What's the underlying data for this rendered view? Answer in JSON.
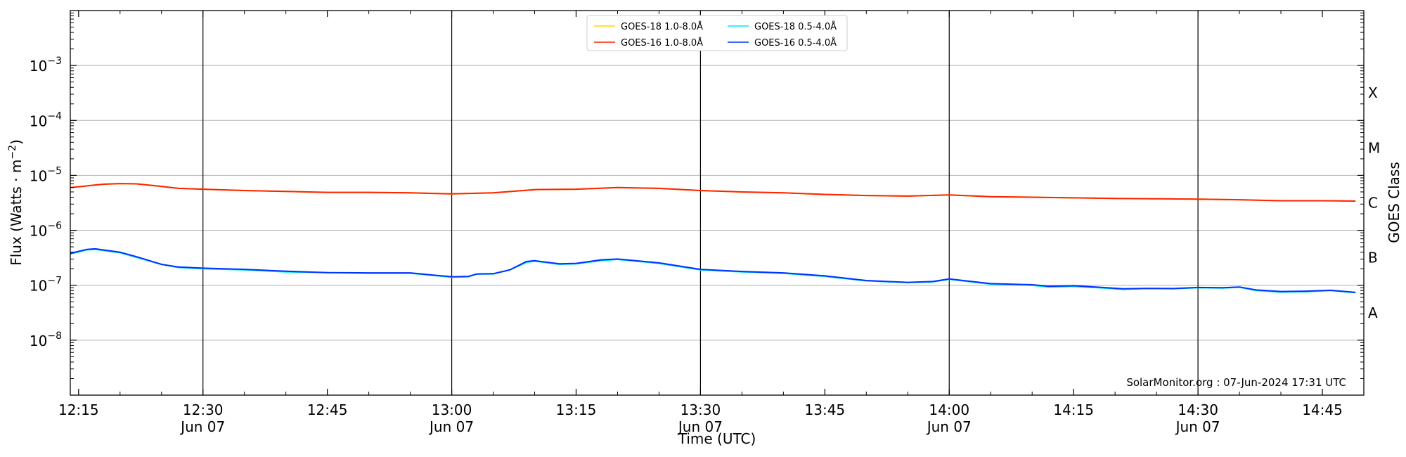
{
  "chart_data": {
    "type": "line",
    "title": "",
    "xlabel": "Time (UTC)",
    "ylabel": "Flux (Watts · m^-2)",
    "ylabel_right": "GOES Class",
    "y_scale": "log",
    "ylim": [
      1e-09,
      0.01
    ],
    "xlim": [
      "2024-06-07 12:14",
      "2024-06-07 14:50"
    ],
    "grid": "horizontal at decades",
    "y_ticks": [
      {
        "value": 1e-08,
        "base": "10",
        "exp": "−8"
      },
      {
        "value": 1e-07,
        "base": "10",
        "exp": "−7"
      },
      {
        "value": 1e-06,
        "base": "10",
        "exp": "−6"
      },
      {
        "value": 1e-05,
        "base": "10",
        "exp": "−5"
      },
      {
        "value": 0.0001,
        "base": "10",
        "exp": "−4"
      },
      {
        "value": 0.001,
        "base": "10",
        "exp": "−3"
      }
    ],
    "x_ticks": [
      {
        "time": "12:15",
        "label": "12:15",
        "date": "",
        "vline": false
      },
      {
        "time": "12:30",
        "label": "12:30",
        "date": "Jun 07",
        "vline": true
      },
      {
        "time": "12:45",
        "label": "12:45",
        "date": "",
        "vline": false
      },
      {
        "time": "13:00",
        "label": "13:00",
        "date": "Jun 07",
        "vline": true
      },
      {
        "time": "13:15",
        "label": "13:15",
        "date": "",
        "vline": false
      },
      {
        "time": "13:30",
        "label": "13:30",
        "date": "Jun 07",
        "vline": true
      },
      {
        "time": "13:45",
        "label": "13:45",
        "date": "",
        "vline": false
      },
      {
        "time": "14:00",
        "label": "14:00",
        "date": "Jun 07",
        "vline": true
      },
      {
        "time": "14:15",
        "label": "14:15",
        "date": "",
        "vline": false
      },
      {
        "time": "14:30",
        "label": "14:30",
        "date": "Jun 07",
        "vline": true
      },
      {
        "time": "14:45",
        "label": "14:45",
        "date": "",
        "vline": false
      }
    ],
    "class_labels": [
      {
        "label": "A",
        "value": 1e-08
      },
      {
        "label": "B",
        "value": 1e-07
      },
      {
        "label": "C",
        "value": 1e-06
      },
      {
        "label": "M",
        "value": 1e-05
      },
      {
        "label": "X",
        "value": 0.0001
      }
    ],
    "legend_position": "top-center",
    "credit": "SolarMonitor.org : 07-Jun-2024 17:31 UTC",
    "series": [
      {
        "name": "GOES-18 1.0-8.0Å",
        "color": "#ffd700",
        "points": [
          [
            "12:14",
            6e-06
          ],
          [
            "12:18",
            6.9e-06
          ],
          [
            "12:20",
            7.1e-06
          ],
          [
            "12:22",
            7e-06
          ],
          [
            "12:25",
            6.3e-06
          ],
          [
            "12:27",
            5.8e-06
          ],
          [
            "12:30",
            5.6e-06
          ],
          [
            "12:35",
            5.3e-06
          ],
          [
            "12:40",
            5.1e-06
          ],
          [
            "12:45",
            4.9e-06
          ],
          [
            "12:50",
            4.9e-06
          ],
          [
            "12:55",
            4.8e-06
          ],
          [
            "13:00",
            4.6e-06
          ],
          [
            "13:05",
            4.8e-06
          ],
          [
            "13:10",
            5.5e-06
          ],
          [
            "13:15",
            5.6e-06
          ],
          [
            "13:20",
            6e-06
          ],
          [
            "13:25",
            5.8e-06
          ],
          [
            "13:30",
            5.3e-06
          ],
          [
            "13:35",
            5e-06
          ],
          [
            "13:40",
            4.8e-06
          ],
          [
            "13:45",
            4.5e-06
          ],
          [
            "13:50",
            4.3e-06
          ],
          [
            "13:55",
            4.2e-06
          ],
          [
            "14:00",
            4.4e-06
          ],
          [
            "14:05",
            4.1e-06
          ],
          [
            "14:10",
            4e-06
          ],
          [
            "14:15",
            3.9e-06
          ],
          [
            "14:20",
            3.8e-06
          ],
          [
            "14:25",
            3.75e-06
          ],
          [
            "14:30",
            3.7e-06
          ],
          [
            "14:35",
            3.6e-06
          ],
          [
            "14:40",
            3.45e-06
          ],
          [
            "14:45",
            3.45e-06
          ],
          [
            "14:49",
            3.4e-06
          ]
        ]
      },
      {
        "name": "GOES-16 1.0-8.0Å",
        "color": "#ff2200",
        "points": [
          [
            "12:14",
            6e-06
          ],
          [
            "12:18",
            6.9e-06
          ],
          [
            "12:20",
            7.1e-06
          ],
          [
            "12:22",
            7e-06
          ],
          [
            "12:25",
            6.3e-06
          ],
          [
            "12:27",
            5.8e-06
          ],
          [
            "12:30",
            5.6e-06
          ],
          [
            "12:35",
            5.3e-06
          ],
          [
            "12:40",
            5.1e-06
          ],
          [
            "12:45",
            4.9e-06
          ],
          [
            "12:50",
            4.9e-06
          ],
          [
            "12:55",
            4.8e-06
          ],
          [
            "13:00",
            4.6e-06
          ],
          [
            "13:05",
            4.8e-06
          ],
          [
            "13:10",
            5.5e-06
          ],
          [
            "13:15",
            5.6e-06
          ],
          [
            "13:20",
            6e-06
          ],
          [
            "13:25",
            5.8e-06
          ],
          [
            "13:30",
            5.3e-06
          ],
          [
            "13:35",
            5e-06
          ],
          [
            "13:40",
            4.8e-06
          ],
          [
            "13:45",
            4.5e-06
          ],
          [
            "13:50",
            4.3e-06
          ],
          [
            "13:55",
            4.2e-06
          ],
          [
            "14:00",
            4.4e-06
          ],
          [
            "14:05",
            4.1e-06
          ],
          [
            "14:10",
            4e-06
          ],
          [
            "14:15",
            3.9e-06
          ],
          [
            "14:20",
            3.8e-06
          ],
          [
            "14:25",
            3.75e-06
          ],
          [
            "14:30",
            3.7e-06
          ],
          [
            "14:35",
            3.6e-06
          ],
          [
            "14:40",
            3.45e-06
          ],
          [
            "14:45",
            3.45e-06
          ],
          [
            "14:49",
            3.4e-06
          ]
        ]
      },
      {
        "name": "GOES-18 0.5-4.0Å",
        "color": "#00e5ff",
        "points": [
          [
            "12:14",
            3.7e-07
          ],
          [
            "12:16",
            4.4e-07
          ],
          [
            "12:17",
            4.5e-07
          ],
          [
            "12:20",
            3.9e-07
          ],
          [
            "12:22",
            3.2e-07
          ],
          [
            "12:25",
            2.4e-07
          ],
          [
            "12:27",
            2.1e-07
          ],
          [
            "12:30",
            2e-07
          ],
          [
            "12:35",
            1.9e-07
          ],
          [
            "12:40",
            1.75e-07
          ],
          [
            "12:45",
            1.7e-07
          ],
          [
            "12:50",
            1.65e-07
          ],
          [
            "12:55",
            1.65e-07
          ],
          [
            "12:58",
            1.5e-07
          ],
          [
            "13:00",
            1.4e-07
          ],
          [
            "13:02",
            1.42e-07
          ],
          [
            "13:03",
            1.6e-07
          ],
          [
            "13:05",
            1.6e-07
          ],
          [
            "13:07",
            1.9e-07
          ],
          [
            "13:09",
            2.6e-07
          ],
          [
            "13:10",
            2.75e-07
          ],
          [
            "13:13",
            2.4e-07
          ],
          [
            "13:15",
            2.45e-07
          ],
          [
            "13:18",
            2.8e-07
          ],
          [
            "13:20",
            2.95e-07
          ],
          [
            "13:25",
            2.5e-07
          ],
          [
            "13:30",
            1.9e-07
          ],
          [
            "13:35",
            1.75e-07
          ],
          [
            "13:40",
            1.65e-07
          ],
          [
            "13:45",
            1.45e-07
          ],
          [
            "13:50",
            1.2e-07
          ],
          [
            "13:55",
            1.12e-07
          ],
          [
            "13:58",
            1.15e-07
          ],
          [
            "14:00",
            1.28e-07
          ],
          [
            "14:05",
            1.05e-07
          ],
          [
            "14:10",
            1e-07
          ],
          [
            "14:12",
            9.3e-08
          ],
          [
            "14:15",
            9.5e-08
          ],
          [
            "14:18",
            9e-08
          ],
          [
            "14:21",
            8.4e-08
          ],
          [
            "14:24",
            8.7e-08
          ],
          [
            "14:27",
            8.6e-08
          ],
          [
            "14:30",
            9e-08
          ],
          [
            "14:33",
            8.9e-08
          ],
          [
            "14:35",
            9.2e-08
          ],
          [
            "14:37",
            8e-08
          ],
          [
            "14:40",
            7.5e-08
          ],
          [
            "14:43",
            7.6e-08
          ],
          [
            "14:46",
            8e-08
          ],
          [
            "14:49",
            7.3e-08
          ]
        ]
      },
      {
        "name": "GOES-16 0.5-4.0Å",
        "color": "#0033ff",
        "points": [
          [
            "12:14",
            3.8e-07
          ],
          [
            "12:16",
            4.5e-07
          ],
          [
            "12:17",
            4.6e-07
          ],
          [
            "12:20",
            4e-07
          ],
          [
            "12:22",
            3.3e-07
          ],
          [
            "12:25",
            2.4e-07
          ],
          [
            "12:27",
            2.15e-07
          ],
          [
            "12:30",
            2.05e-07
          ],
          [
            "12:35",
            1.95e-07
          ],
          [
            "12:40",
            1.8e-07
          ],
          [
            "12:45",
            1.7e-07
          ],
          [
            "12:50",
            1.68e-07
          ],
          [
            "12:55",
            1.68e-07
          ],
          [
            "12:58",
            1.52e-07
          ],
          [
            "13:00",
            1.43e-07
          ],
          [
            "13:02",
            1.45e-07
          ],
          [
            "13:03",
            1.6e-07
          ],
          [
            "13:05",
            1.62e-07
          ],
          [
            "13:07",
            1.9e-07
          ],
          [
            "13:09",
            2.7e-07
          ],
          [
            "13:10",
            2.8e-07
          ],
          [
            "13:13",
            2.45e-07
          ],
          [
            "13:15",
            2.5e-07
          ],
          [
            "13:18",
            2.9e-07
          ],
          [
            "13:20",
            3e-07
          ],
          [
            "13:25",
            2.55e-07
          ],
          [
            "13:30",
            1.95e-07
          ],
          [
            "13:35",
            1.78e-07
          ],
          [
            "13:40",
            1.68e-07
          ],
          [
            "13:45",
            1.48e-07
          ],
          [
            "13:50",
            1.22e-07
          ],
          [
            "13:55",
            1.13e-07
          ],
          [
            "13:58",
            1.17e-07
          ],
          [
            "14:00",
            1.3e-07
          ],
          [
            "14:05",
            1.07e-07
          ],
          [
            "14:10",
            1.02e-07
          ],
          [
            "14:12",
            9.6e-08
          ],
          [
            "14:15",
            9.8e-08
          ],
          [
            "14:18",
            9.2e-08
          ],
          [
            "14:21",
            8.6e-08
          ],
          [
            "14:24",
            8.8e-08
          ],
          [
            "14:27",
            8.7e-08
          ],
          [
            "14:30",
            9.1e-08
          ],
          [
            "14:33",
            9e-08
          ],
          [
            "14:35",
            9.3e-08
          ],
          [
            "14:37",
            8.2e-08
          ],
          [
            "14:40",
            7.7e-08
          ],
          [
            "14:43",
            7.8e-08
          ],
          [
            "14:46",
            8.1e-08
          ],
          [
            "14:49",
            7.4e-08
          ]
        ]
      }
    ]
  }
}
